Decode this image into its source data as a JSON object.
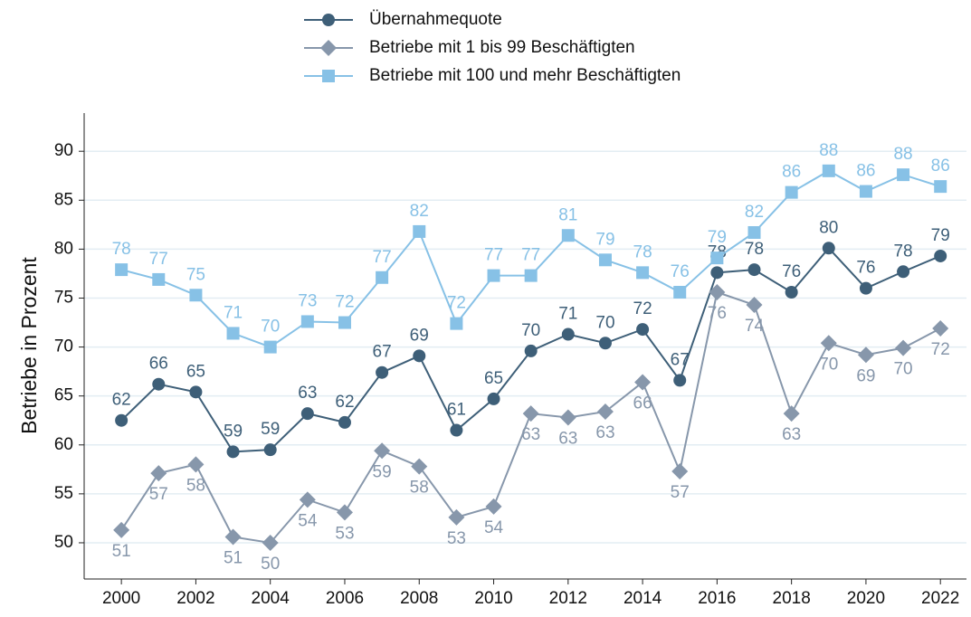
{
  "chart_data": {
    "type": "line",
    "ylabel": "Betriebe in Prozent",
    "x": [
      2000,
      2001,
      2002,
      2003,
      2004,
      2005,
      2006,
      2007,
      2008,
      2009,
      2010,
      2011,
      2012,
      2013,
      2014,
      2015,
      2016,
      2017,
      2018,
      2019,
      2020,
      2021,
      2022
    ],
    "xlim": [
      1999,
      2022.7
    ],
    "xticks": [
      2000,
      2002,
      2004,
      2006,
      2008,
      2010,
      2012,
      2014,
      2016,
      2018,
      2020,
      2022
    ],
    "ylim": [
      46.3,
      93.9
    ],
    "yticks": [
      50,
      55,
      60,
      65,
      70,
      75,
      80,
      85,
      90
    ],
    "grid": true,
    "series": [
      {
        "name": "Übernahmequote",
        "color": "#3e5f78",
        "marker": "circle",
        "label_position": "above",
        "values": [
          62.5,
          66.2,
          65.4,
          59.3,
          59.5,
          63.2,
          62.3,
          67.4,
          69.1,
          61.5,
          64.7,
          69.6,
          71.3,
          70.4,
          71.8,
          66.6,
          77.6,
          77.9,
          75.6,
          80.1,
          76.0,
          77.7,
          79.3
        ],
        "value_labels": [
          "62",
          "66",
          "65",
          "59",
          "59",
          "63",
          "62",
          "67",
          "69",
          "61",
          "65",
          "70",
          "71",
          "70",
          "72",
          "67",
          "78",
          "78",
          "76",
          "80",
          "76",
          "78",
          "79"
        ]
      },
      {
        "name": "Betriebe mit 1 bis 99 Beschäftigten",
        "color": "#8797ab",
        "marker": "diamond",
        "label_position": "below",
        "values": [
          51.3,
          57.1,
          58.0,
          50.6,
          50.0,
          54.4,
          53.1,
          59.4,
          57.8,
          52.6,
          53.7,
          63.2,
          62.8,
          63.4,
          66.4,
          57.3,
          75.6,
          74.3,
          63.2,
          70.4,
          69.2,
          69.9,
          71.9
        ],
        "value_labels": [
          "51",
          "57",
          "58",
          "51",
          "50",
          "54",
          "53",
          "59",
          "58",
          "53",
          "54",
          "63",
          "63",
          "63",
          "66",
          "57",
          "76",
          "74",
          "63",
          "70",
          "69",
          "70",
          "72"
        ]
      },
      {
        "name": "Betriebe mit 100 und mehr Beschäftigten",
        "color": "#87c1e6",
        "marker": "square",
        "label_position": "above",
        "values": [
          77.9,
          76.9,
          75.3,
          71.4,
          70.0,
          72.6,
          72.5,
          77.1,
          81.8,
          72.4,
          77.3,
          77.3,
          81.4,
          78.9,
          77.6,
          75.6,
          79.1,
          81.7,
          85.8,
          88.0,
          85.9,
          87.6,
          86.4
        ],
        "value_labels": [
          "78",
          "77",
          "75",
          "71",
          "70",
          "73",
          "72",
          "77",
          "82",
          "72",
          "77",
          "77",
          "81",
          "79",
          "78",
          "76",
          "79",
          "82",
          "86",
          "88",
          "86",
          "88",
          "86"
        ]
      }
    ]
  }
}
